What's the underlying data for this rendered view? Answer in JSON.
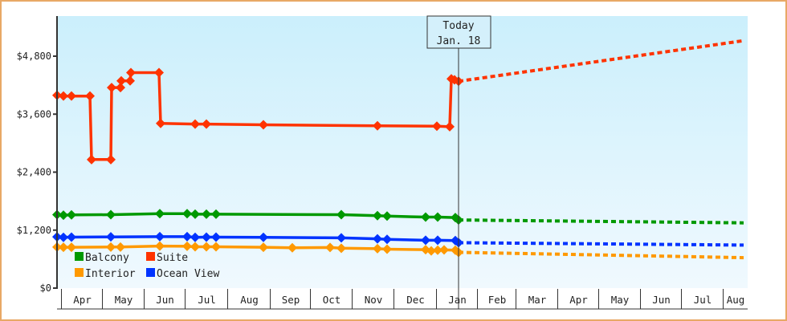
{
  "chart_data": {
    "type": "line",
    "title": "",
    "xlabel": "",
    "ylabel": "",
    "ylim": [
      0,
      5200
    ],
    "yticks": [
      {
        "value": 0,
        "label": "$0"
      },
      {
        "value": 1200,
        "label": "$1,200"
      },
      {
        "value": 2400,
        "label": "$2,400"
      },
      {
        "value": 3600,
        "label": "$3,600"
      },
      {
        "value": 4800,
        "label": "$4,800"
      }
    ],
    "x_months": [
      "Apr",
      "May",
      "Jun",
      "Jul",
      "Aug",
      "Sep",
      "Oct",
      "Nov",
      "Dec",
      "Jan",
      "Feb",
      "Mar",
      "Apr",
      "May",
      "Jun",
      "Jul",
      "Aug"
    ],
    "grid": false,
    "legend_position": "bottom-left inside",
    "today_marker": {
      "line1": "Today",
      "line2": "Jan. 18"
    },
    "series": [
      {
        "name": "Suite",
        "color": "#ff3300",
        "history": [
          [
            71,
            3990
          ],
          [
            79,
            3975
          ],
          [
            89,
            3975
          ],
          [
            112,
            3975
          ],
          [
            114,
            2660
          ],
          [
            138,
            2660
          ],
          [
            139,
            4150
          ],
          [
            150,
            4150
          ],
          [
            151,
            4290
          ],
          [
            162,
            4290
          ],
          [
            163,
            4460
          ],
          [
            198,
            4460
          ],
          [
            200,
            3410
          ],
          [
            243,
            3395
          ],
          [
            257,
            3395
          ],
          [
            328,
            3380
          ],
          [
            470,
            3360
          ],
          [
            544,
            3350
          ],
          [
            560,
            3340
          ],
          [
            562,
            4330
          ],
          [
            566,
            4310
          ],
          [
            571,
            4280
          ]
        ],
        "forecast": [
          [
            571,
            4280
          ],
          [
            926,
            5120
          ]
        ]
      },
      {
        "name": "Balcony",
        "color": "#009900",
        "history": [
          [
            71,
            1520
          ],
          [
            79,
            1510
          ],
          [
            89,
            1515
          ],
          [
            138,
            1520
          ],
          [
            199,
            1540
          ],
          [
            233,
            1540
          ],
          [
            243,
            1530
          ],
          [
            257,
            1530
          ],
          [
            269,
            1530
          ],
          [
            425,
            1520
          ],
          [
            470,
            1500
          ],
          [
            482,
            1490
          ],
          [
            530,
            1470
          ],
          [
            545,
            1470
          ],
          [
            567,
            1460
          ],
          [
            571,
            1410
          ]
        ],
        "forecast": [
          [
            571,
            1410
          ],
          [
            926,
            1350
          ]
        ]
      },
      {
        "name": "Ocean View",
        "color": "#0033ff",
        "history": [
          [
            71,
            1060
          ],
          [
            79,
            1050
          ],
          [
            89,
            1055
          ],
          [
            138,
            1060
          ],
          [
            199,
            1065
          ],
          [
            233,
            1065
          ],
          [
            243,
            1050
          ],
          [
            257,
            1055
          ],
          [
            269,
            1055
          ],
          [
            328,
            1050
          ],
          [
            425,
            1040
          ],
          [
            470,
            1020
          ],
          [
            482,
            1010
          ],
          [
            530,
            990
          ],
          [
            545,
            990
          ],
          [
            567,
            985
          ],
          [
            571,
            940
          ]
        ],
        "forecast": [
          [
            571,
            940
          ],
          [
            926,
            890
          ]
        ]
      },
      {
        "name": "Interior",
        "color": "#ff9900",
        "history": [
          [
            71,
            850
          ],
          [
            79,
            845
          ],
          [
            89,
            845
          ],
          [
            138,
            850
          ],
          [
            150,
            850
          ],
          [
            199,
            870
          ],
          [
            233,
            865
          ],
          [
            243,
            855
          ],
          [
            257,
            855
          ],
          [
            269,
            855
          ],
          [
            328,
            845
          ],
          [
            364,
            835
          ],
          [
            411,
            840
          ],
          [
            425,
            825
          ],
          [
            470,
            815
          ],
          [
            482,
            805
          ],
          [
            530,
            795
          ],
          [
            537,
            770
          ],
          [
            545,
            785
          ],
          [
            553,
            790
          ],
          [
            567,
            785
          ],
          [
            571,
            740
          ]
        ],
        "forecast": [
          [
            571,
            740
          ],
          [
            926,
            630
          ]
        ]
      }
    ]
  },
  "legend": [
    {
      "label": "Balcony",
      "color": "#009900"
    },
    {
      "label": "Suite",
      "color": "#ff3300"
    },
    {
      "label": "Interior",
      "color": "#ff9900"
    },
    {
      "label": "Ocean View",
      "color": "#0033ff"
    }
  ]
}
